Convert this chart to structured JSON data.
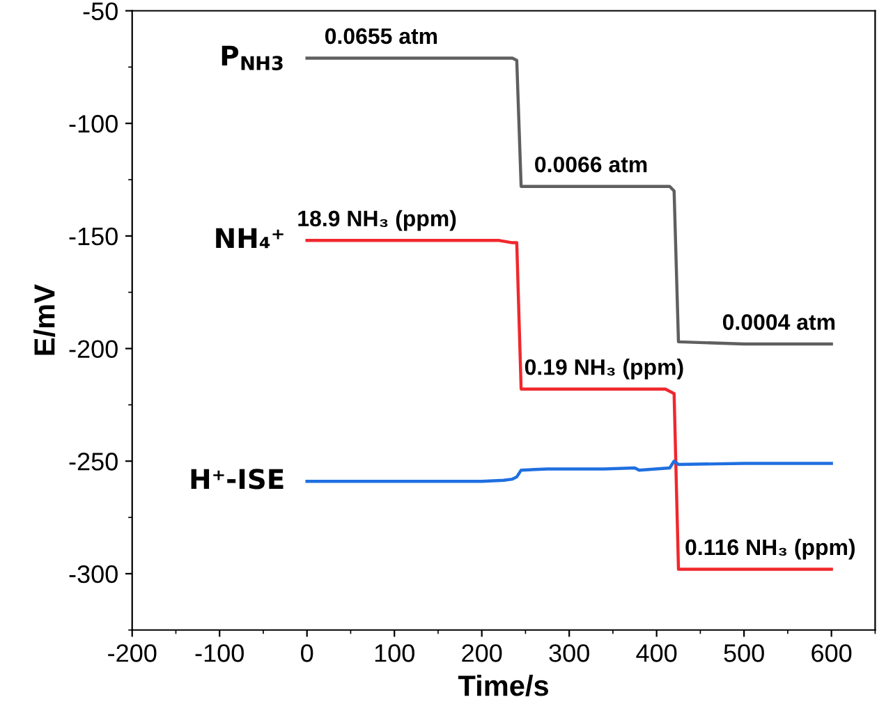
{
  "chart_data": {
    "type": "line",
    "xlabel": "Time/s",
    "ylabel": "E/mV",
    "xlim": [
      -200,
      650
    ],
    "ylim": [
      -325,
      -50
    ],
    "xticks": [
      -200,
      -100,
      0,
      100,
      200,
      300,
      400,
      500,
      600
    ],
    "yticks": [
      -300,
      -250,
      -200,
      -150,
      -100,
      -50
    ],
    "grid": false,
    "legend": false,
    "marker": "none",
    "line_style": "solid",
    "series": [
      {
        "name": "P$_{NH3}$",
        "color": "#5f5f5f",
        "x": [
          0,
          85,
          100,
          200,
          235,
          240,
          245,
          300,
          325,
          400,
          415,
          420,
          425,
          500,
          540,
          600
        ],
        "values": [
          -71,
          -71,
          -71,
          -71,
          -71,
          -72,
          -128,
          -128,
          -128,
          -128,
          -128,
          -130,
          -197,
          -198,
          -198,
          -198
        ]
      },
      {
        "name": "NH₄⁺",
        "color": "#f0282d",
        "x": [
          0,
          80,
          100,
          200,
          220,
          235,
          240,
          245,
          300,
          340,
          400,
          410,
          420,
          425,
          500,
          530,
          600
        ],
        "values": [
          -152,
          -152,
          -152,
          -152,
          -152,
          -153,
          -153,
          -218,
          -218,
          -218,
          -218,
          -218,
          -220,
          -298,
          -298,
          -298,
          -298
        ]
      },
      {
        "name": "H⁺-ISE",
        "color": "#1f6fe0",
        "x": [
          0,
          100,
          200,
          225,
          235,
          240,
          245,
          275,
          300,
          340,
          375,
          380,
          415,
          420,
          425,
          500,
          600
        ],
        "values": [
          -259,
          -259,
          -259,
          -258.5,
          -258,
          -257,
          -254,
          -253.5,
          -253.5,
          -253.5,
          -253,
          -254,
          -253,
          -250,
          -251.5,
          -251,
          -251
        ]
      }
    ],
    "annotations": [
      {
        "text": "0.0655 atm",
        "x": 85,
        "y": -71
      },
      {
        "text": "0.0066 atm",
        "x": 325,
        "y": -128
      },
      {
        "text": "0.0004 atm",
        "x": 540,
        "y": -198
      },
      {
        "text": "18.9 NH₃ (ppm)",
        "x": 80,
        "y": -152
      },
      {
        "text": "0.19 NH₃ (ppm)",
        "x": 340,
        "y": -218
      },
      {
        "text": "0.116 NH₃ (ppm)",
        "x": 530,
        "y": -298
      }
    ]
  }
}
